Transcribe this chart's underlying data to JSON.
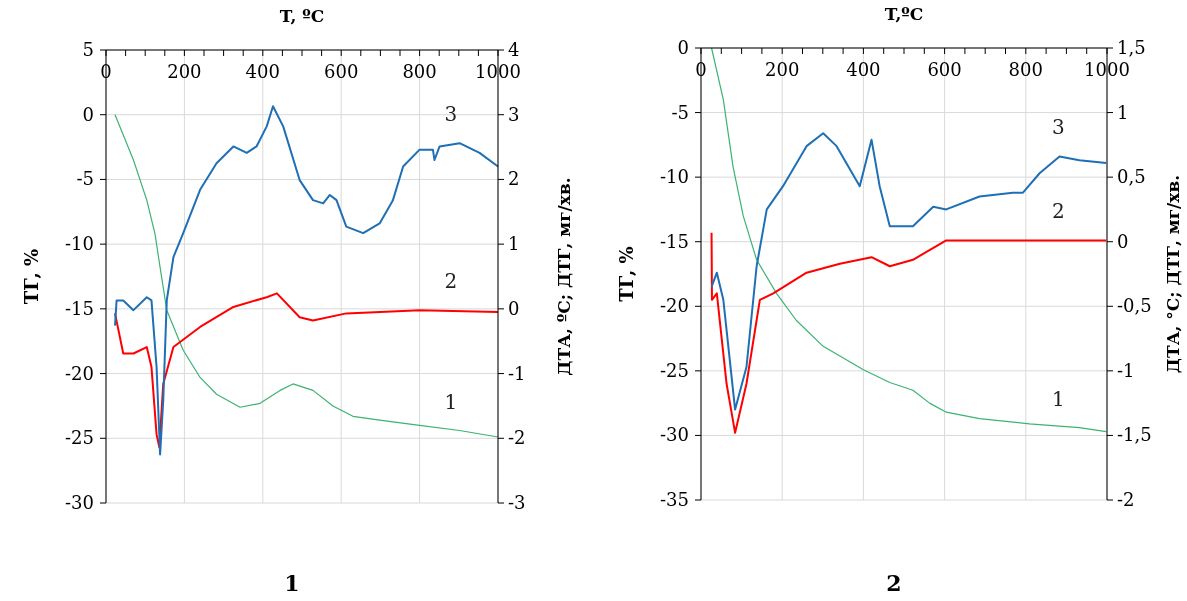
{
  "chart_data": [
    {
      "type": "line",
      "title": "1",
      "xlabel": "T, ºC",
      "ylabel": "ТГ, %",
      "y2label": "ДТА, ºС; ДТГ, мг/хв.",
      "grid": true,
      "xlim": [
        0,
        1000
      ],
      "xticks": [
        0,
        {
          "value": 50,
          "label": null
        },
        {
          "value": 100,
          "label": null
        },
        {
          "value": 150,
          "label": null
        },
        200,
        {
          "value": 250,
          "label": null
        },
        {
          "value": 300,
          "label": null
        },
        {
          "value": 350,
          "label": null
        },
        400,
        {
          "value": 450,
          "label": null
        },
        {
          "value": 500,
          "label": null
        },
        {
          "value": 550,
          "label": null
        },
        600,
        {
          "value": 650,
          "label": null
        },
        {
          "value": 700,
          "label": null
        },
        {
          "value": 750,
          "label": null
        },
        800,
        {
          "value": 850,
          "label": null
        },
        {
          "value": 900,
          "label": null
        },
        {
          "value": 950,
          "label": null
        },
        1000
      ],
      "ylim": [
        -30,
        5
      ],
      "yticks": [
        -30,
        -25,
        -20,
        -15,
        -10,
        -5,
        0,
        5
      ],
      "y2lim": [
        -3,
        4
      ],
      "y2ticks": [
        -3,
        -2,
        -1,
        0,
        1,
        2,
        3,
        4
      ],
      "series": [
        {
          "name": "1",
          "color": "#3cb371",
          "x": [
            23,
            70,
            104,
            125,
            138,
            155,
            197,
            240,
            282,
            342,
            393,
            444,
            477,
            528,
            579,
            630,
            698,
            800,
            902,
            1000
          ],
          "values": [
            0,
            -3.5,
            -6.6,
            -9.2,
            -11.8,
            -15.1,
            -18.2,
            -20.3,
            -21.6,
            -22.6,
            -22.3,
            -21.3,
            -20.8,
            -21.3,
            -22.5,
            -23.3,
            -23.6,
            -24.0,
            -24.4,
            -24.9
          ]
        },
        {
          "name": "2",
          "color": "#ff0000",
          "axis": "y2",
          "x": [
            23,
            44,
            70,
            104,
            116,
            129,
            136,
            146,
            172,
            240,
            325,
            410,
            436,
            494,
            528,
            613,
            800,
            1000
          ],
          "values": [
            -0.07,
            -0.69,
            -0.69,
            -0.59,
            -0.9,
            -1.94,
            -2.14,
            -1.16,
            -0.59,
            -0.28,
            0.03,
            0.18,
            0.24,
            -0.13,
            -0.18,
            -0.07,
            -0.02,
            -0.05
          ]
        },
        {
          "name": "3",
          "color": "#1f6fb5",
          "axis": "y2",
          "x": [
            23,
            27,
            44,
            70,
            104,
            116,
            129,
            138,
            146,
            155,
            172,
            197,
            240,
            282,
            325,
            359,
            384,
            410,
            426,
            452,
            494,
            528,
            554,
            571,
            588,
            613,
            656,
            698,
            732,
            758,
            800,
            834,
            838,
            851,
            902,
            953,
            1000
          ],
          "values": [
            -0.26,
            0.13,
            0.13,
            -0.02,
            0.18,
            0.13,
            -0.9,
            -2.25,
            -1.42,
            0.13,
            0.8,
            1.17,
            1.84,
            2.25,
            2.51,
            2.41,
            2.51,
            2.82,
            3.13,
            2.82,
            1.99,
            1.68,
            1.63,
            1.76,
            1.68,
            1.27,
            1.17,
            1.32,
            1.68,
            2.2,
            2.46,
            2.46,
            2.3,
            2.51,
            2.56,
            2.41,
            2.2
          ]
        }
      ]
    },
    {
      "type": "line",
      "title": "2",
      "xlabel": "T,ºC",
      "ylabel": "ТГ, %",
      "y2label": "ДТА, °С; ДТГ, мг/хв.",
      "grid": true,
      "xlim": [
        0,
        1000
      ],
      "xticks": [
        0,
        {
          "value": 50,
          "label": null
        },
        {
          "value": 100,
          "label": null
        },
        {
          "value": 150,
          "label": null
        },
        200,
        {
          "value": 250,
          "label": null
        },
        {
          "value": 300,
          "label": null
        },
        {
          "value": 350,
          "label": null
        },
        400,
        {
          "value": 450,
          "label": null
        },
        {
          "value": 500,
          "label": null
        },
        {
          "value": 550,
          "label": null
        },
        600,
        {
          "value": 650,
          "label": null
        },
        {
          "value": 700,
          "label": null
        },
        {
          "value": 750,
          "label": null
        },
        800,
        {
          "value": 850,
          "label": null
        },
        {
          "value": 900,
          "label": null
        },
        {
          "value": 950,
          "label": null
        },
        1000
      ],
      "ylim": [
        -35,
        0
      ],
      "yticks": [
        -35,
        -30,
        -25,
        -20,
        -15,
        -10,
        -5,
        0
      ],
      "y2lim": [
        -2,
        1.5
      ],
      "y2ticks": [
        -2,
        {
          "value": -1.5,
          "label": "-1,5"
        },
        -1,
        {
          "value": -0.5,
          "label": "-0,5"
        },
        0,
        {
          "value": 0.5,
          "label": "0,5"
        },
        1,
        {
          "value": 1.5,
          "label": "1,5"
        }
      ],
      "series": [
        {
          "name": "1",
          "color": "#3cb371",
          "x": [
            26,
            55,
            79,
            104,
            137,
            186,
            235,
            301,
            399,
            465,
            522,
            563,
            604,
            686,
            809,
            932,
            998
          ],
          "values": [
            0,
            -4.0,
            -9.2,
            -13.0,
            -16.4,
            -19.0,
            -21.1,
            -23.1,
            -24.9,
            -25.9,
            -26.5,
            -27.5,
            -28.2,
            -28.7,
            -29.1,
            -29.4,
            -29.7
          ]
        },
        {
          "name": "2",
          "color": "#ff0000",
          "axis": "y2",
          "x": [
            26,
            27,
            39,
            63,
            84,
            112,
            145,
            178,
            260,
            342,
            420,
            465,
            522,
            604,
            768,
            998
          ],
          "values": [
            0.07,
            -0.45,
            -0.4,
            -1.1,
            -1.48,
            -1.1,
            -0.45,
            -0.4,
            -0.24,
            -0.17,
            -0.12,
            -0.19,
            -0.14,
            0.01,
            0.01,
            0.01
          ]
        },
        {
          "name": "3",
          "color": "#1f6fb5",
          "axis": "y2",
          "x": [
            26,
            39,
            55,
            84,
            112,
            137,
            162,
            202,
            260,
            301,
            334,
            391,
            420,
            440,
            465,
            490,
            522,
            572,
            604,
            686,
            768,
            793,
            834,
            883,
            932,
            998
          ],
          "values": [
            -0.35,
            -0.24,
            -0.45,
            -1.3,
            -0.97,
            -0.19,
            0.25,
            0.43,
            0.74,
            0.84,
            0.74,
            0.43,
            0.79,
            0.43,
            0.12,
            0.12,
            0.12,
            0.27,
            0.25,
            0.35,
            0.38,
            0.38,
            0.53,
            0.66,
            0.63,
            0.61
          ]
        }
      ]
    }
  ]
}
